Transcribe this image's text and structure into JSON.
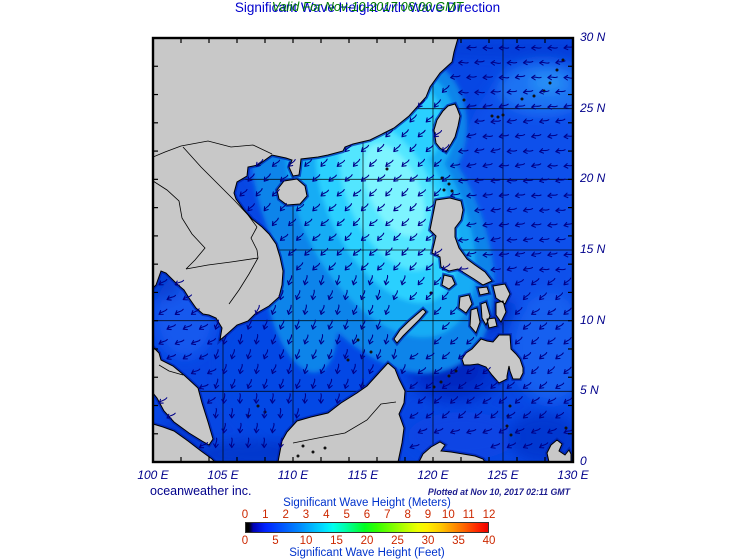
{
  "header": {
    "title": "Significant Wave Height with Wave Direction",
    "subtitle": "Valid For Nov-10-2017 06:00 GMT"
  },
  "footer": {
    "credit": "oceanweather inc.",
    "plotted": "Plotted at Nov 10, 2017 02:11 GMT"
  },
  "axes": {
    "lat_labels": [
      "30 N",
      "25 N",
      "20 N",
      "15 N",
      "10 N",
      "5 N",
      "0"
    ],
    "lon_labels": [
      "100 E",
      "105 E",
      "110 E",
      "115 E",
      "120 E",
      "125 E",
      "130 E"
    ],
    "lat_range": [
      0,
      30
    ],
    "lon_range": [
      100,
      130
    ],
    "minor_tick_deg": 2,
    "grid_deg": 5
  },
  "legend": {
    "meters_label": "Significant Wave Height (Meters)",
    "feet_label": "Significant Wave Height (Feet)",
    "meters_ticks": [
      0,
      1,
      2,
      3,
      4,
      5,
      6,
      7,
      8,
      9,
      10,
      11,
      12
    ],
    "feet_ticks": [
      0,
      5,
      10,
      15,
      20,
      25,
      30,
      35,
      40
    ],
    "gradient_stops": [
      [
        "#000000",
        0
      ],
      [
        "#000000",
        1.2
      ],
      [
        "#0000b4",
        3
      ],
      [
        "#0022ff",
        8
      ],
      [
        "#0055ff",
        15
      ],
      [
        "#0088ff",
        22
      ],
      [
        "#00bbff",
        28
      ],
      [
        "#00e4ff",
        33
      ],
      [
        "#00ffee",
        36
      ],
      [
        "#00ffaa",
        41
      ],
      [
        "#00ff66",
        45
      ],
      [
        "#00ff22",
        49
      ],
      [
        "#33ff00",
        54
      ],
      [
        "#77ff00",
        60
      ],
      [
        "#bbff00",
        66
      ],
      [
        "#eeff00",
        71
      ],
      [
        "#ffee00",
        75
      ],
      [
        "#ffcc00",
        80
      ],
      [
        "#ff9900",
        85
      ],
      [
        "#ff6600",
        90
      ],
      [
        "#ff2200",
        96
      ],
      [
        "#ee0000",
        100
      ]
    ]
  },
  "colors": {
    "title_blue": "#0000cd",
    "valid_green": "#007d00",
    "label_navy": "#00008b",
    "plotted_navy": "#1c1c8e",
    "tick_red": "#cc2800",
    "legend_blue": "#0033cc",
    "land_gray": "#c8c8c8",
    "coast_black": "#000000",
    "ocean_base": "#0747e4",
    "arrow_navy": "#000088"
  },
  "map_summary": {
    "regions": [
      {
        "area": "northern South China Sea",
        "sig_wave_height_m": "3-4 peak near 116E 19N",
        "wave_direction": "toward SW"
      },
      {
        "area": "Taiwan Strait",
        "sig_wave_height_m": "2.5-3.5",
        "wave_direction": "toward SW"
      },
      {
        "area": "Philippine Sea (Pacific)",
        "sig_wave_height_m": "1.5-2",
        "wave_direction": "toward W"
      },
      {
        "area": "southern South China Sea",
        "sig_wave_height_m": "1-2",
        "wave_direction": "toward SSW"
      },
      {
        "area": "Gulf of Thailand",
        "sig_wave_height_m": "1-1.5",
        "wave_direction": "toward WSW"
      },
      {
        "area": "Sulu and Celebes Seas",
        "sig_wave_height_m": "0.5-1.5",
        "wave_direction": "toward WSW"
      }
    ]
  }
}
